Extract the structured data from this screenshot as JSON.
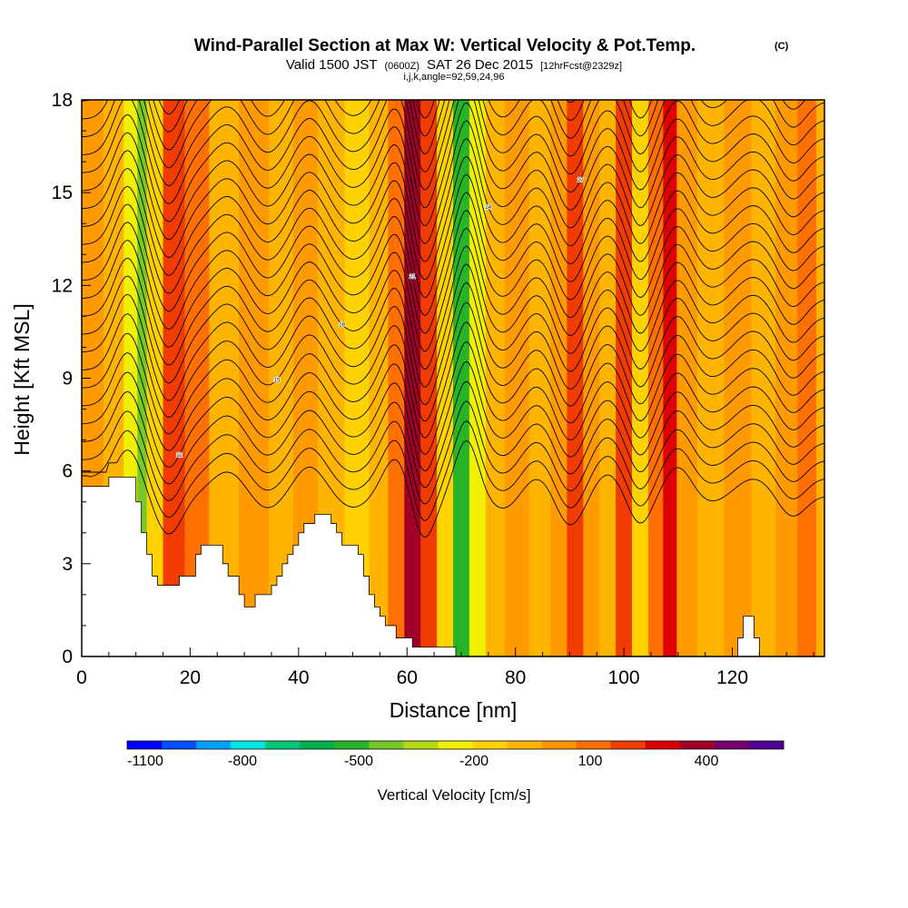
{
  "chart_data": {
    "type": "heatmap",
    "title": "Wind-Parallel Section at Max W: Vertical Velocity & Pot.Temp.",
    "title_mark": "(C)",
    "subtitle": {
      "part1": "Valid 1500 JST",
      "part2": "(0600Z)",
      "part3": "SAT 26 Dec 2015",
      "part4": "[12hrFcst@2329z]"
    },
    "ijk_line": "i,j,k,angle=92,59,24,96",
    "xlabel": "Distance [nm]",
    "ylabel": "Height [Kft MSL]",
    "xlim": [
      0,
      137
    ],
    "ylim": [
      0,
      18
    ],
    "xticks": [
      0,
      20,
      40,
      60,
      80,
      100,
      120
    ],
    "yticks": [
      0,
      3,
      6,
      9,
      12,
      15,
      18
    ],
    "colorbar": {
      "label": "Vertical Velocity [cm/s]",
      "tick_labels": [
        "-1100",
        "-800",
        "-500",
        "-200",
        "100",
        "400"
      ],
      "colors": [
        "#0000ff",
        "#0050ff",
        "#00a0ff",
        "#00e6e6",
        "#00c878",
        "#00b050",
        "#28b428",
        "#78c828",
        "#b4dc14",
        "#f0f000",
        "#ffd200",
        "#ffb400",
        "#ff9600",
        "#ff6e00",
        "#f03c00",
        "#dc0000",
        "#a00028",
        "#78006e",
        "#500096"
      ]
    },
    "bands": [
      {
        "x": 2,
        "color": "#ff9a00"
      },
      {
        "x": 6,
        "color": "#ffb400"
      },
      {
        "x": 9.5,
        "color": "#f0f000"
      },
      {
        "x": 11,
        "color": "#78c828"
      },
      {
        "x": 13,
        "color": "#ffd200"
      },
      {
        "x": 17,
        "color": "#f03c00"
      },
      {
        "x": 21,
        "color": "#ff7000"
      },
      {
        "x": 26,
        "color": "#ffb400"
      },
      {
        "x": 32,
        "color": "#ff9a00"
      },
      {
        "x": 37,
        "color": "#ffb400"
      },
      {
        "x": 41,
        "color": "#ff9a00"
      },
      {
        "x": 46,
        "color": "#ffb400"
      },
      {
        "x": 51,
        "color": "#ffd200"
      },
      {
        "x": 55,
        "color": "#ffb400"
      },
      {
        "x": 58,
        "color": "#ff7000"
      },
      {
        "x": 61,
        "color": "#a00028"
      },
      {
        "x": 64,
        "color": "#f03c00"
      },
      {
        "x": 67,
        "color": "#ffd200"
      },
      {
        "x": 70,
        "color": "#28b428"
      },
      {
        "x": 73,
        "color": "#f0f000"
      },
      {
        "x": 76,
        "color": "#ffb400"
      },
      {
        "x": 80,
        "color": "#ff9a00"
      },
      {
        "x": 85,
        "color": "#ffb400"
      },
      {
        "x": 88,
        "color": "#ff9a00"
      },
      {
        "x": 91,
        "color": "#f03c00"
      },
      {
        "x": 94,
        "color": "#ff9a00"
      },
      {
        "x": 97,
        "color": "#ffb400"
      },
      {
        "x": 100,
        "color": "#f03c00"
      },
      {
        "x": 103,
        "color": "#ffd200"
      },
      {
        "x": 106,
        "color": "#ff7000"
      },
      {
        "x": 108.5,
        "color": "#dc0000"
      },
      {
        "x": 111,
        "color": "#ff9a00"
      },
      {
        "x": 116,
        "color": "#ffb400"
      },
      {
        "x": 121,
        "color": "#ff9a00"
      },
      {
        "x": 126,
        "color": "#ffb400"
      },
      {
        "x": 130,
        "color": "#ff9a00"
      },
      {
        "x": 134,
        "color": "#ff7000"
      },
      {
        "x": 137,
        "color": "#ffb400"
      }
    ],
    "terrain": [
      [
        0,
        5.5
      ],
      [
        5,
        5.5
      ],
      [
        5,
        5.8
      ],
      [
        10,
        5.8
      ],
      [
        10,
        5.0
      ],
      [
        11,
        5.0
      ],
      [
        11,
        4.0
      ],
      [
        12,
        4.0
      ],
      [
        12,
        3.3
      ],
      [
        13,
        3.3
      ],
      [
        13,
        2.6
      ],
      [
        14,
        2.6
      ],
      [
        14,
        2.3
      ],
      [
        18,
        2.3
      ],
      [
        18,
        2.6
      ],
      [
        21,
        2.6
      ],
      [
        21,
        3.3
      ],
      [
        22,
        3.3
      ],
      [
        22,
        3.6
      ],
      [
        26,
        3.6
      ],
      [
        26,
        3.0
      ],
      [
        27,
        3.0
      ],
      [
        27,
        2.6
      ],
      [
        29,
        2.6
      ],
      [
        29,
        2.0
      ],
      [
        30,
        2.0
      ],
      [
        30,
        1.6
      ],
      [
        32,
        1.6
      ],
      [
        32,
        2.0
      ],
      [
        35,
        2.0
      ],
      [
        35,
        2.3
      ],
      [
        36,
        2.3
      ],
      [
        36,
        2.6
      ],
      [
        37,
        2.6
      ],
      [
        37,
        3.0
      ],
      [
        38,
        3.0
      ],
      [
        38,
        3.3
      ],
      [
        39,
        3.3
      ],
      [
        39,
        3.6
      ],
      [
        40,
        3.6
      ],
      [
        40,
        4.0
      ],
      [
        41,
        4.0
      ],
      [
        41,
        4.3
      ],
      [
        43,
        4.3
      ],
      [
        43,
        4.6
      ],
      [
        46,
        4.6
      ],
      [
        46,
        4.3
      ],
      [
        47,
        4.3
      ],
      [
        47,
        4.0
      ],
      [
        48,
        4.0
      ],
      [
        48,
        3.6
      ],
      [
        51,
        3.6
      ],
      [
        51,
        3.3
      ],
      [
        52,
        3.3
      ],
      [
        52,
        2.6
      ],
      [
        53,
        2.6
      ],
      [
        53,
        2.0
      ],
      [
        54,
        2.0
      ],
      [
        54,
        1.6
      ],
      [
        55,
        1.6
      ],
      [
        55,
        1.3
      ],
      [
        56,
        1.3
      ],
      [
        56,
        1.0
      ],
      [
        58,
        1.0
      ],
      [
        58,
        0.6
      ],
      [
        61,
        0.6
      ],
      [
        61,
        0.3
      ],
      [
        69,
        0.3
      ],
      [
        69,
        0
      ],
      [
        121,
        0
      ],
      [
        121,
        0.6
      ],
      [
        122,
        0.6
      ],
      [
        122,
        1.3
      ],
      [
        124,
        1.3
      ],
      [
        124,
        0.6
      ],
      [
        125,
        0.6
      ],
      [
        125,
        0
      ],
      [
        137,
        0
      ]
    ],
    "contours": {
      "theta_min": 8,
      "theta_max": 52,
      "theta_step": 1,
      "base_height": 5.2,
      "height_per_degree": 0.58,
      "labels": [
        "12",
        "15",
        "18",
        "21",
        "24",
        "27",
        "30",
        "33",
        "36",
        "39",
        "42",
        "45",
        "48"
      ]
    },
    "waves": [
      {
        "x": 8.5,
        "amp": 1.9,
        "width": 3.5
      },
      {
        "x": 16,
        "amp": -1.6,
        "width": 3.5
      },
      {
        "x": 27,
        "amp": 1.0,
        "width": 4.5
      },
      {
        "x": 34,
        "amp": -0.6,
        "width": 4.0
      },
      {
        "x": 42,
        "amp": 1.2,
        "width": 4.0
      },
      {
        "x": 50,
        "amp": -0.5,
        "width": 4.0
      },
      {
        "x": 58,
        "amp": 1.6,
        "width": 3.5
      },
      {
        "x": 63,
        "amp": -1.9,
        "width": 3.0
      },
      {
        "x": 71,
        "amp": 2.3,
        "width": 3.0
      },
      {
        "x": 78,
        "amp": -0.6,
        "width": 4.0
      },
      {
        "x": 84,
        "amp": 0.8,
        "width": 4.0
      },
      {
        "x": 90,
        "amp": -1.3,
        "width": 3.5
      },
      {
        "x": 97,
        "amp": 0.9,
        "width": 3.5
      },
      {
        "x": 103,
        "amp": -1.2,
        "width": 3.0
      },
      {
        "x": 110,
        "amp": 1.2,
        "width": 3.5
      },
      {
        "x": 116,
        "amp": -0.3,
        "width": 4.0
      },
      {
        "x": 124,
        "amp": 0.7,
        "width": 4.5
      },
      {
        "x": 131,
        "amp": -0.9,
        "width": 3.5
      }
    ]
  }
}
